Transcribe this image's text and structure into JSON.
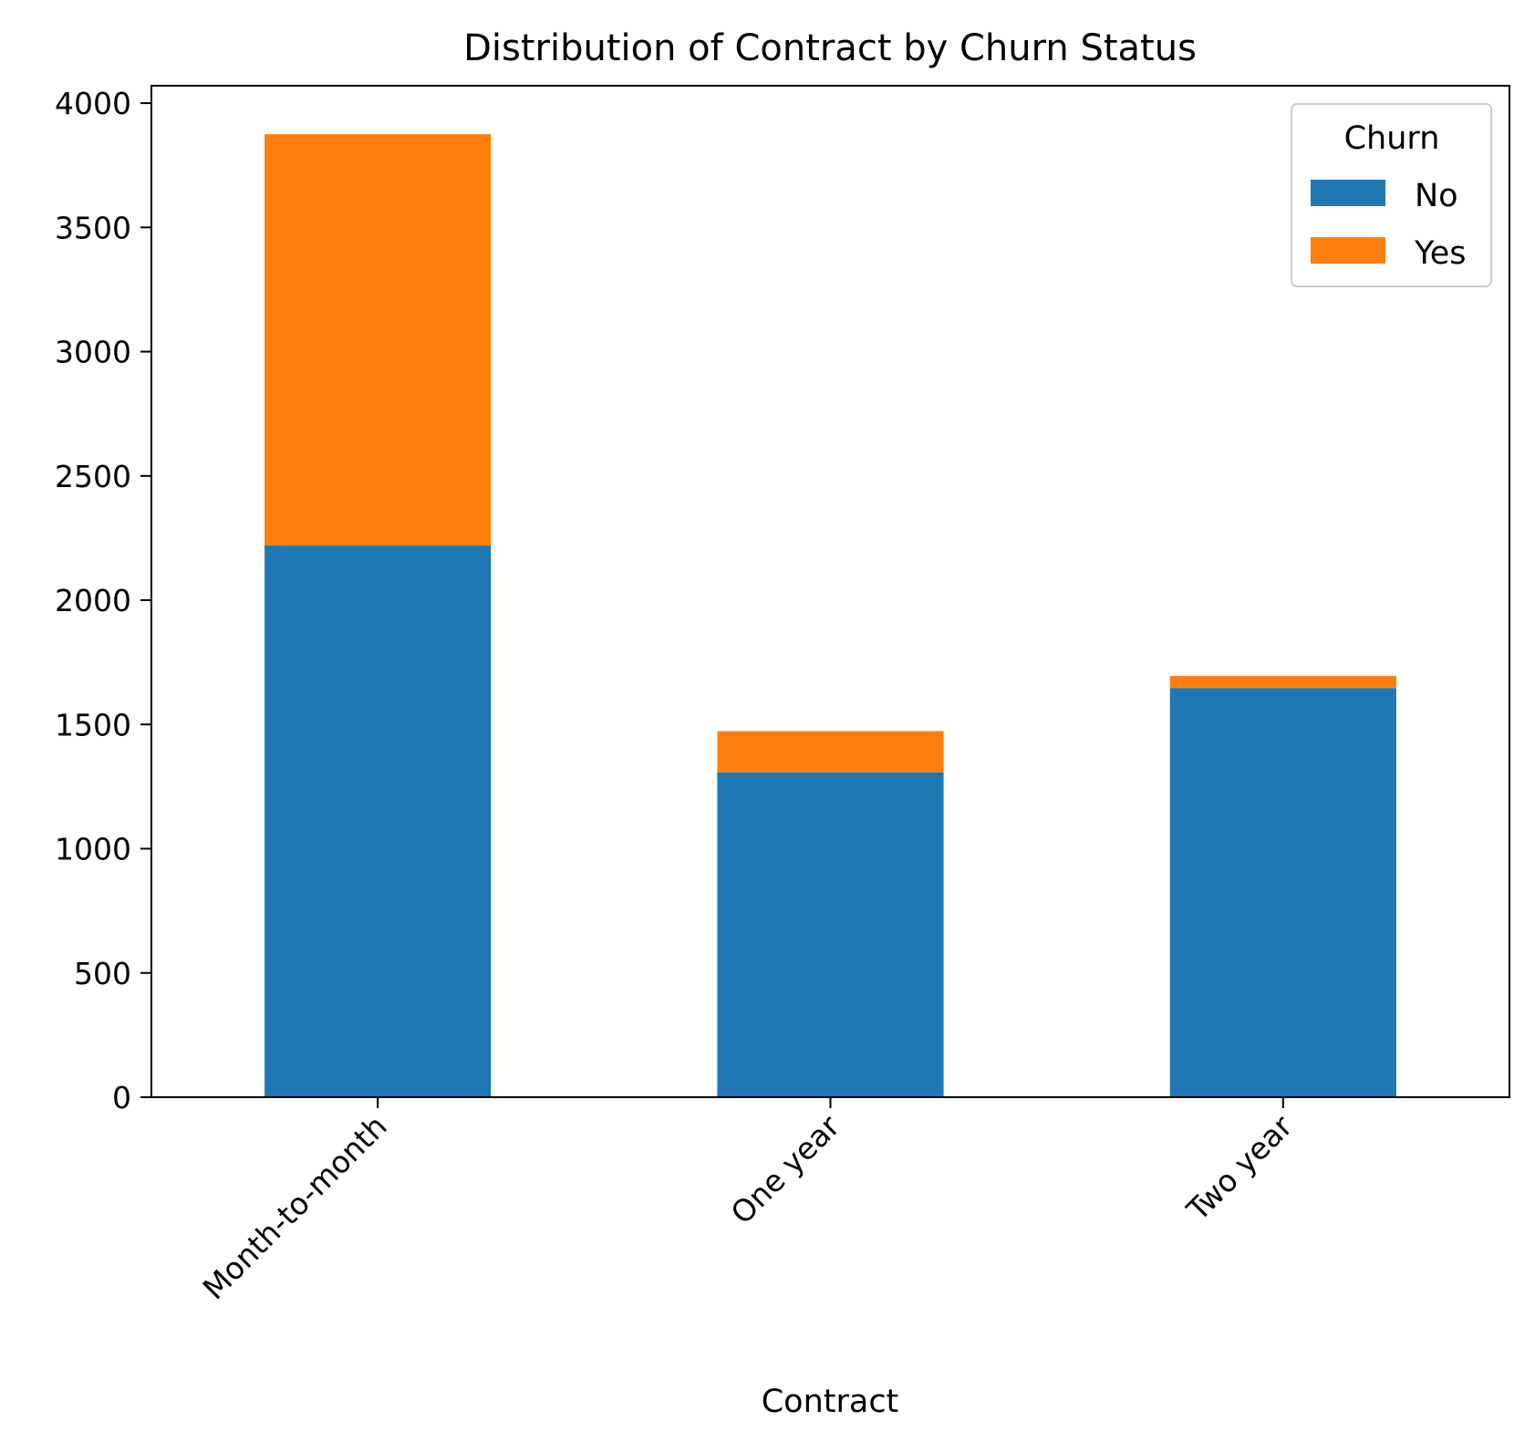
{
  "chart_data": {
    "type": "bar",
    "stacked": true,
    "title": "Distribution of Contract by Churn Status",
    "xlabel": "Contract",
    "ylabel": "",
    "categories": [
      "Month-to-month",
      "One year",
      "Two year"
    ],
    "series": [
      {
        "name": "No",
        "color": "#1f77b4",
        "values": [
          2220,
          1307,
          1647
        ]
      },
      {
        "name": "Yes",
        "color": "#ff7f0e",
        "values": [
          1655,
          166,
          48
        ]
      }
    ],
    "ylim": [
      0,
      4070
    ],
    "yticks": [
      0,
      500,
      1000,
      1500,
      2000,
      2500,
      3000,
      3500,
      4000
    ],
    "legend": {
      "title": "Churn",
      "placement": "top-right"
    },
    "grid": false
  }
}
